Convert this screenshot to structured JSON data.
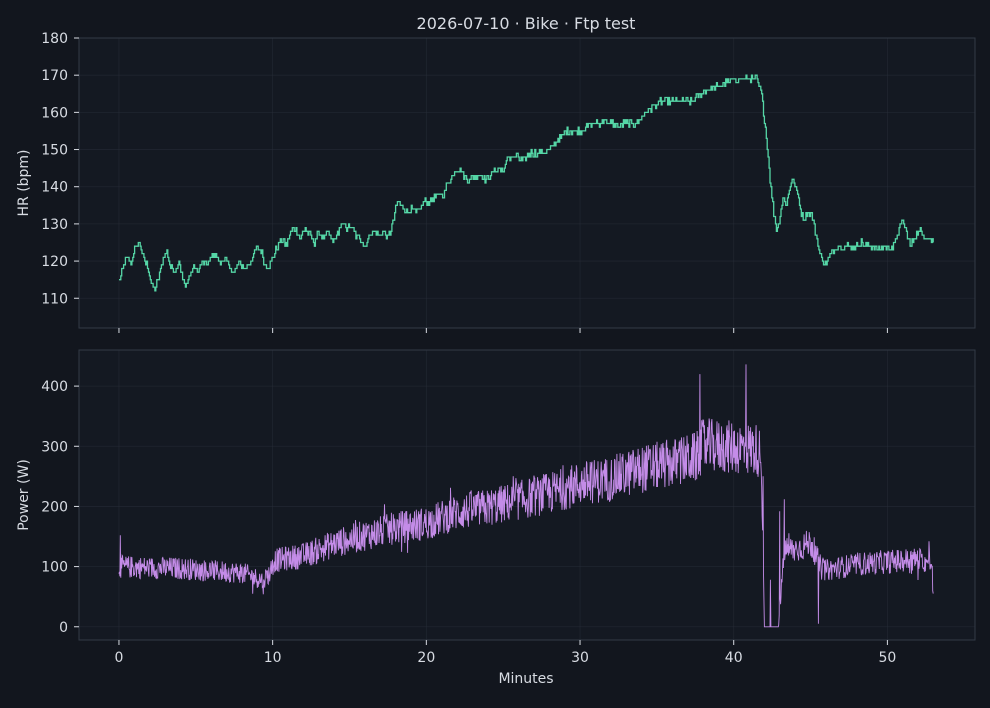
{
  "title": "2026-07-10 · Bike · Ftp test",
  "colors": {
    "background": "#12161e",
    "panel": "#141922",
    "frame": "#333a46",
    "grid": "#2a303b",
    "text": "#d8dce3",
    "hr_line": "#55d6a6",
    "power_line": "#c48ce8",
    "zone_low": "#252b38",
    "zone_teal": "#1d3a3b",
    "zone_olive": "#2e3326",
    "zone_brown": "#3a2b27",
    "zone_red": "#3a2127"
  },
  "chart_data": [
    {
      "type": "line",
      "name": "hr",
      "ylabel": "HR (bpm)",
      "xlabel": "",
      "xlim": [
        -2.6,
        55.7
      ],
      "ylim": [
        102,
        180
      ],
      "x_ticks": [
        0,
        10,
        20,
        30,
        40,
        50
      ],
      "x_tick_labels_visible": false,
      "y_ticks": [
        110,
        120,
        130,
        140,
        150,
        160,
        170,
        180
      ],
      "grid": true,
      "zones": [
        {
          "from": 102,
          "to": 128,
          "color": "zone_low"
        },
        {
          "from": 128,
          "to": 142,
          "color": "zone_teal"
        },
        {
          "from": 142,
          "to": 150,
          "color": "zone_olive"
        },
        {
          "from": 150,
          "to": 155,
          "color": "zone_brown"
        },
        {
          "from": 155,
          "to": 180,
          "color": "zone_red"
        }
      ],
      "series": [
        {
          "color": "hr_line",
          "step": true,
          "points": [
            [
              0,
              115
            ],
            [
              0.2,
              117
            ],
            [
              0.5,
              121
            ],
            [
              0.8,
              119
            ],
            [
              1.0,
              123
            ],
            [
              1.3,
              125
            ],
            [
              1.6,
              121
            ],
            [
              1.9,
              118
            ],
            [
              2.1,
              114
            ],
            [
              2.3,
              112
            ],
            [
              2.6,
              116
            ],
            [
              2.9,
              121
            ],
            [
              3.1,
              123
            ],
            [
              3.3,
              119
            ],
            [
              3.6,
              117
            ],
            [
              3.9,
              120
            ],
            [
              4.1,
              116
            ],
            [
              4.3,
              113
            ],
            [
              4.6,
              116
            ],
            [
              4.9,
              119
            ],
            [
              5.1,
              117
            ],
            [
              5.4,
              120
            ],
            [
              5.7,
              119
            ],
            [
              6.0,
              121
            ],
            [
              6.3,
              122
            ],
            [
              6.6,
              119
            ],
            [
              6.9,
              121
            ],
            [
              7.2,
              118
            ],
            [
              7.5,
              117
            ],
            [
              7.8,
              120
            ],
            [
              8.1,
              118
            ],
            [
              8.4,
              119
            ],
            [
              8.7,
              121
            ],
            [
              9.0,
              124
            ],
            [
              9.3,
              122
            ],
            [
              9.5,
              119
            ],
            [
              9.7,
              118
            ],
            [
              10.0,
              121
            ],
            [
              10.3,
              124
            ],
            [
              10.6,
              126
            ],
            [
              10.9,
              124
            ],
            [
              11.2,
              128
            ],
            [
              11.5,
              129
            ],
            [
              11.8,
              126
            ],
            [
              12.1,
              129
            ],
            [
              12.4,
              127
            ],
            [
              12.7,
              125
            ],
            [
              13.0,
              128
            ],
            [
              13.3,
              126
            ],
            [
              13.6,
              128
            ],
            [
              13.9,
              125
            ],
            [
              14.2,
              127
            ],
            [
              14.5,
              130
            ],
            [
              14.8,
              129
            ],
            [
              15.1,
              129
            ],
            [
              15.4,
              127
            ],
            [
              15.7,
              126
            ],
            [
              16.0,
              124
            ],
            [
              16.3,
              127
            ],
            [
              16.6,
              128
            ],
            [
              16.9,
              127
            ],
            [
              17.2,
              128
            ],
            [
              17.5,
              126
            ],
            [
              17.8,
              130
            ],
            [
              18.1,
              136
            ],
            [
              18.4,
              135
            ],
            [
              18.7,
              133
            ],
            [
              19.0,
              134
            ],
            [
              19.3,
              133
            ],
            [
              19.6,
              134
            ],
            [
              19.9,
              136
            ],
            [
              20.2,
              136
            ],
            [
              20.5,
              137
            ],
            [
              20.8,
              138
            ],
            [
              21.1,
              138
            ],
            [
              21.4,
              141
            ],
            [
              21.7,
              143
            ],
            [
              22.0,
              145
            ],
            [
              22.3,
              144
            ],
            [
              22.6,
              142
            ],
            [
              22.9,
              142
            ],
            [
              23.2,
              143
            ],
            [
              23.5,
              143
            ],
            [
              23.8,
              142
            ],
            [
              24.1,
              143
            ],
            [
              24.4,
              144
            ],
            [
              24.7,
              145
            ],
            [
              25.0,
              144
            ],
            [
              25.3,
              148
            ],
            [
              25.6,
              148
            ],
            [
              25.9,
              148
            ],
            [
              26.2,
              147
            ],
            [
              26.5,
              148
            ],
            [
              26.8,
              149
            ],
            [
              27.1,
              149
            ],
            [
              27.4,
              149
            ],
            [
              27.7,
              149
            ],
            [
              28.0,
              150
            ],
            [
              28.3,
              151
            ],
            [
              28.6,
              153
            ],
            [
              28.9,
              154
            ],
            [
              29.2,
              155
            ],
            [
              29.5,
              155
            ],
            [
              29.8,
              155
            ],
            [
              30.1,
              155
            ],
            [
              30.4,
              156
            ],
            [
              30.7,
              157
            ],
            [
              31.0,
              157
            ],
            [
              31.3,
              157
            ],
            [
              31.6,
              158
            ],
            [
              31.9,
              157
            ],
            [
              32.2,
              157
            ],
            [
              32.5,
              156
            ],
            [
              32.8,
              157
            ],
            [
              33.1,
              157
            ],
            [
              33.4,
              157
            ],
            [
              33.7,
              157
            ],
            [
              34.0,
              159
            ],
            [
              34.3,
              160
            ],
            [
              34.6,
              161
            ],
            [
              34.9,
              162
            ],
            [
              35.2,
              163
            ],
            [
              35.5,
              163
            ],
            [
              35.8,
              163
            ],
            [
              36.1,
              163
            ],
            [
              36.4,
              163
            ],
            [
              36.7,
              163
            ],
            [
              37.0,
              163
            ],
            [
              37.3,
              163
            ],
            [
              37.6,
              164
            ],
            [
              37.9,
              165
            ],
            [
              38.2,
              166
            ],
            [
              38.5,
              166
            ],
            [
              38.8,
              167
            ],
            [
              39.1,
              167
            ],
            [
              39.4,
              168
            ],
            [
              39.7,
              168
            ],
            [
              40.0,
              169
            ],
            [
              40.3,
              169
            ],
            [
              40.6,
              169
            ],
            [
              40.9,
              169
            ],
            [
              41.2,
              169
            ],
            [
              41.5,
              169
            ],
            [
              41.8,
              165
            ],
            [
              42.0,
              158
            ],
            [
              42.2,
              150
            ],
            [
              42.4,
              140
            ],
            [
              42.6,
              133
            ],
            [
              42.8,
              128
            ],
            [
              43.0,
              132
            ],
            [
              43.2,
              137
            ],
            [
              43.4,
              135
            ],
            [
              43.6,
              139
            ],
            [
              43.8,
              142
            ],
            [
              44.0,
              140
            ],
            [
              44.2,
              137
            ],
            [
              44.4,
              133
            ],
            [
              44.6,
              131
            ],
            [
              44.8,
              133
            ],
            [
              45.0,
              133
            ],
            [
              45.2,
              130
            ],
            [
              45.4,
              126
            ],
            [
              45.6,
              122
            ],
            [
              45.8,
              120
            ],
            [
              46.0,
              119
            ],
            [
              46.2,
              121
            ],
            [
              46.5,
              123
            ],
            [
              46.8,
              124
            ],
            [
              47.1,
              124
            ],
            [
              47.4,
              124
            ],
            [
              47.7,
              124
            ],
            [
              48.0,
              124
            ],
            [
              48.3,
              125
            ],
            [
              48.6,
              124
            ],
            [
              48.9,
              124
            ],
            [
              49.2,
              124
            ],
            [
              49.5,
              123
            ],
            [
              49.8,
              124
            ],
            [
              50.1,
              123
            ],
            [
              50.4,
              124
            ],
            [
              50.7,
              128
            ],
            [
              51.0,
              131
            ],
            [
              51.2,
              128
            ],
            [
              51.5,
              124
            ],
            [
              51.8,
              127
            ],
            [
              52.1,
              128
            ],
            [
              52.4,
              127
            ],
            [
              52.7,
              126
            ],
            [
              53.0,
              125
            ]
          ]
        }
      ]
    },
    {
      "type": "line",
      "name": "power",
      "ylabel": "Power (W)",
      "xlabel": "Minutes",
      "xlim": [
        -2.6,
        55.7
      ],
      "ylim": [
        -22,
        460
      ],
      "x_ticks": [
        0,
        10,
        20,
        30,
        40,
        50
      ],
      "y_ticks": [
        0,
        100,
        200,
        300,
        400
      ],
      "grid": true,
      "series": [
        {
          "color": "power_line",
          "noisy": true,
          "points": [
            [
              0,
              100
            ],
            [
              2,
              98
            ],
            [
              4,
              97
            ],
            [
              6,
              93
            ],
            [
              8,
              90
            ],
            [
              9.3,
              78
            ],
            [
              9.8,
              88
            ],
            [
              10.1,
              110
            ],
            [
              12,
              118
            ],
            [
              14,
              138
            ],
            [
              16,
              152
            ],
            [
              18,
              164
            ],
            [
              20,
              172
            ],
            [
              22,
              190
            ],
            [
              24,
              198
            ],
            [
              26,
              210
            ],
            [
              28,
              222
            ],
            [
              30,
              238
            ],
            [
              32,
              246
            ],
            [
              34,
              262
            ],
            [
              36,
              272
            ],
            [
              37.6,
              282
            ],
            [
              38,
              302
            ],
            [
              40,
              298
            ],
            [
              41.5,
              295
            ],
            [
              41.8,
              283
            ],
            [
              42.0,
              0
            ],
            [
              42.9,
              0
            ],
            [
              43.3,
              128
            ],
            [
              44,
              128
            ],
            [
              45,
              140
            ],
            [
              45.5,
              112
            ],
            [
              45.7,
              96
            ],
            [
              46.0,
              94
            ],
            [
              48,
              104
            ],
            [
              50,
              108
            ],
            [
              52,
              112
            ],
            [
              52.9,
              105
            ],
            [
              53.0,
              30
            ]
          ],
          "spikes": [
            [
              0.1,
              152
            ],
            [
              9.4,
              54
            ],
            [
              37.8,
              420
            ],
            [
              38.1,
              335
            ],
            [
              40.8,
              436
            ],
            [
              41.9,
              250
            ],
            [
              42.4,
              78
            ],
            [
              43.0,
              192
            ],
            [
              43.3,
              212
            ],
            [
              45.5,
              5
            ],
            [
              52.7,
              142
            ]
          ]
        }
      ]
    }
  ]
}
